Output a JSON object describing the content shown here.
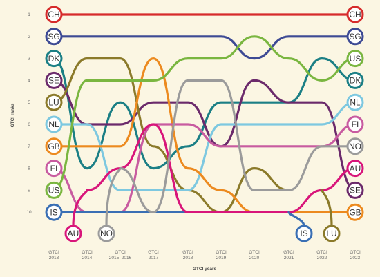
{
  "chart_data": {
    "type": "line",
    "title": "",
    "xlabel": "GTCI years",
    "ylabel": "GTCI ranks",
    "x": [
      [
        "GTCI",
        "2013"
      ],
      [
        "GTCI",
        "2014"
      ],
      [
        "GTCI",
        "2015–2016"
      ],
      [
        "GTCI",
        "2017"
      ],
      [
        "GTCI",
        "2018"
      ],
      [
        "GTCI",
        "2019"
      ],
      [
        "GTCI",
        "2020"
      ],
      [
        "GTCI",
        "2021"
      ],
      [
        "GTCI",
        "2022"
      ],
      [
        "GTCI",
        "2023"
      ]
    ],
    "y_ticks": [
      1,
      2,
      3,
      4,
      5,
      6,
      7,
      8,
      9,
      10
    ],
    "ylim": [
      1,
      10
    ],
    "y_inverted": true,
    "series": [
      {
        "name": "CH",
        "color": "#d62b2b",
        "ranks": [
          1,
          1,
          1,
          1,
          1,
          1,
          1,
          1,
          1,
          1
        ]
      },
      {
        "name": "SG",
        "color": "#3d4a94",
        "ranks": [
          2,
          2,
          2,
          2,
          2,
          2,
          3,
          2,
          2,
          2
        ]
      },
      {
        "name": "DK",
        "color": "#1b7f85",
        "ranks": [
          3,
          8,
          5,
          8,
          7,
          5,
          5,
          5,
          3,
          4
        ]
      },
      {
        "name": "SE",
        "color": "#6b2a6b",
        "ranks": [
          4,
          6,
          6,
          5,
          5,
          7,
          4,
          5,
          5,
          9
        ]
      },
      {
        "name": "LU",
        "color": "#8b7a2a",
        "ranks": [
          5,
          3,
          3,
          7,
          9,
          10,
          8,
          9,
          null,
          null
        ]
      },
      {
        "name": "NL",
        "color": "#7dc8e0",
        "ranks": [
          6,
          6,
          9,
          9,
          9,
          6,
          6,
          6,
          6,
          5
        ]
      },
      {
        "name": "GB",
        "color": "#ec8a1f",
        "ranks": [
          7,
          7,
          7,
          3,
          8,
          9,
          10,
          10,
          10,
          10
        ]
      },
      {
        "name": "FI",
        "color": "#c85ba0",
        "ranks": [
          8,
          10,
          10,
          6,
          6,
          7,
          7,
          7,
          7,
          6
        ]
      },
      {
        "name": "US",
        "color": "#7ab640",
        "ranks": [
          9,
          4,
          4,
          4,
          3,
          3,
          2,
          3,
          4,
          3
        ]
      },
      {
        "name": "IS",
        "color": "#3a6fb4",
        "ranks": [
          10,
          10,
          10,
          10,
          10,
          10,
          10,
          10,
          null,
          null
        ]
      },
      {
        "name": "AU",
        "color": "#d8157a",
        "ranks": [
          null,
          9,
          8,
          6,
          10,
          10,
          10,
          10,
          9,
          8
        ]
      },
      {
        "name": "NO",
        "color": "#9b9b9b",
        "ranks": [
          null,
          null,
          8,
          10,
          4,
          4,
          9,
          9,
          7,
          7
        ]
      }
    ],
    "dropped_out_labels": [
      "AU",
      "NO",
      "IS",
      "LU"
    ],
    "left_labels": [
      "CH",
      "SG",
      "DK",
      "SE",
      "LU",
      "NL",
      "GB",
      "FI",
      "US",
      "IS"
    ],
    "right_labels": [
      "CH",
      "SG",
      "US",
      "DK",
      "NL",
      "FI",
      "NO",
      "AU",
      "SE",
      "GB"
    ],
    "grid": false,
    "legend": "none (labels at line ends)"
  }
}
